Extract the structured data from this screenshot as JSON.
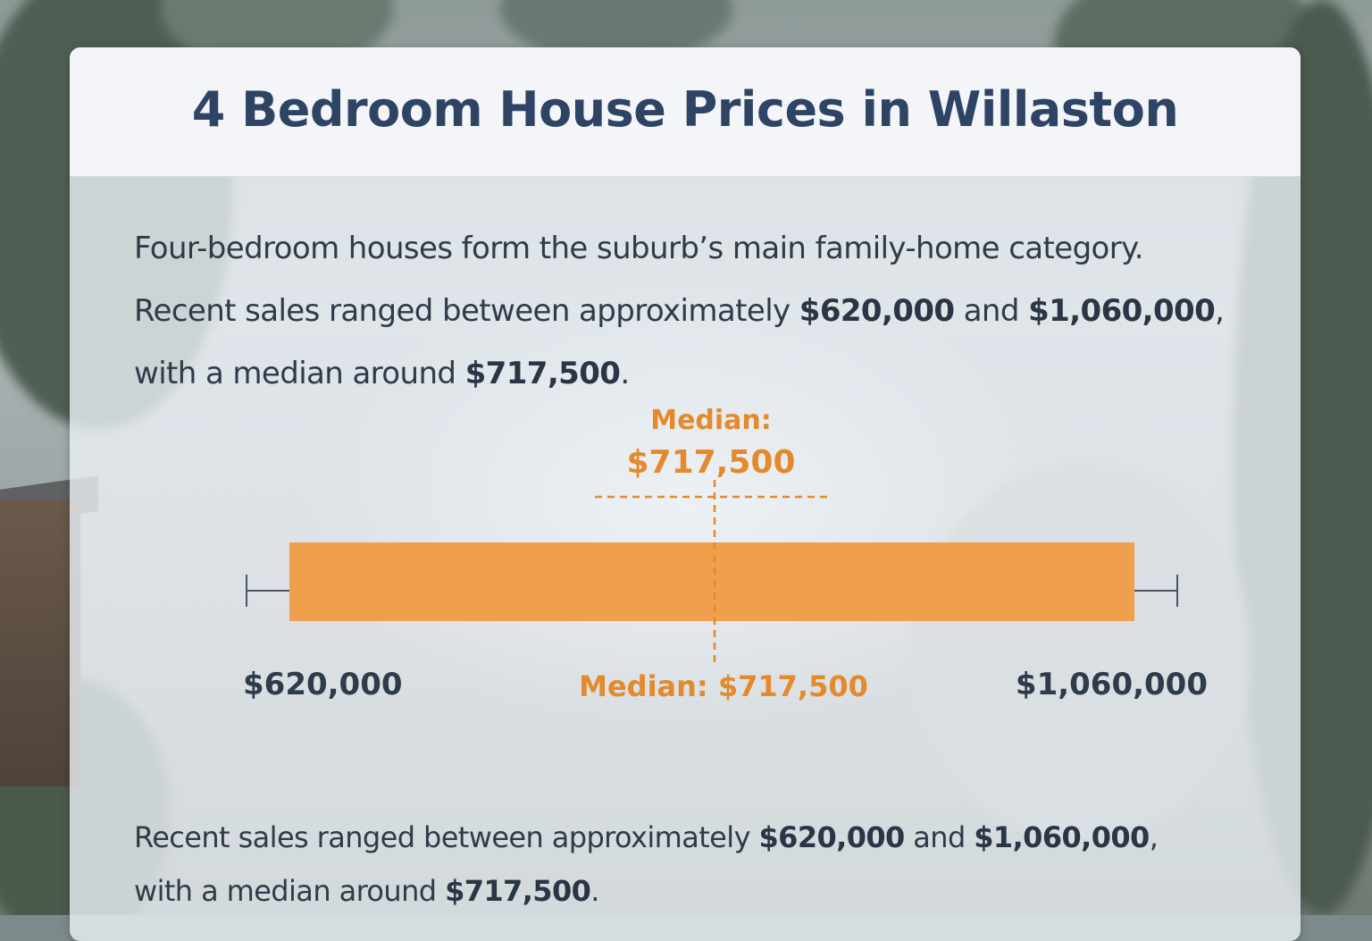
{
  "title": "4 Bedroom House Prices in Willaston",
  "intro": {
    "line1": "Four-bedroom houses form the suburb’s main family-home category.",
    "line2_pre": "Recent sales ranged between approximately ",
    "line2_min": "$620,000",
    "line2_mid": " and ",
    "line2_max": "$1,060,000",
    "line2_end": ",",
    "line3_pre": "with a median around ",
    "line3_median": "$717,500",
    "line3_end": "."
  },
  "footer": {
    "line1_pre": "Recent sales ranged between approximately ",
    "line1_min": "$620,000",
    "line1_mid": " and ",
    "line1_max": "$1,060,000",
    "line1_end": ",",
    "line2_pre": "with a median around ",
    "line2_median": "$717,500",
    "line2_end": "."
  },
  "chart_data": {
    "type": "bar",
    "orientation": "horizontal-range",
    "min": 620000,
    "max": 1060000,
    "median": 717500,
    "labels": {
      "min": "$620,000",
      "max": "$1,060,000",
      "median_top_line1": "Median:",
      "median_top_line2": "$717,500",
      "median_bottom": "Median: $717,500"
    },
    "colors": {
      "bar": "#f0a04c",
      "median": "#e48a2c",
      "text": "#2f3b4a",
      "whisker": "#4a5563"
    }
  }
}
